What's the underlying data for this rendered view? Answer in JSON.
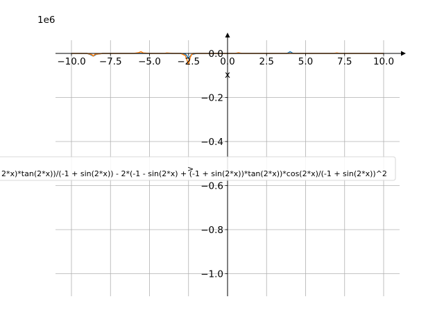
{
  "chart_data": {
    "type": "line",
    "title": "",
    "xlabel": "x",
    "ylabel": "",
    "y_offset_label": "1e6",
    "xlim": [
      -11.0,
      11.5
    ],
    "ylim": [
      -1.1,
      0.1
    ],
    "grid": true,
    "legend_position": "center-left",
    "x_ticks": [
      -10.0,
      -7.5,
      -5.0,
      -2.5,
      0.0,
      2.5,
      5.0,
      7.5,
      10.0
    ],
    "x_tick_labels": [
      "−10.0",
      "−7.5",
      "−5.0",
      "−2.5",
      "0.0",
      "2.5",
      "5.0",
      "7.5",
      "10.0"
    ],
    "y_ticks": [
      0.0,
      -0.2,
      -0.4,
      -0.6,
      -0.8,
      -1.0
    ],
    "y_tick_labels": [
      "0.0",
      "−0.2",
      "−0.4",
      "−0.6",
      "−0.8",
      "−1.0"
    ],
    "legend_entries": [
      "2*x)*tan(2*x))/(-1 + sin(2*x)) - 2*(-1 - sin(2*x) + (-1 + sin(2*x))*tan(2*x))*cos(2*x)/(-1 + sin(2*x))^2",
      ">"
    ],
    "series": [
      {
        "color": "#1f77b4",
        "x": [
          -10,
          -9.5,
          -9,
          -8.8,
          -8.6,
          -8.4,
          -8,
          -7,
          -6,
          -5.5,
          -5,
          -4,
          -3,
          -2.7,
          -2.5,
          -2.3,
          -2,
          -1,
          0,
          1,
          2,
          3,
          3.8,
          3.9,
          4.0,
          4.2,
          5,
          6,
          7,
          8,
          9,
          10
        ],
        "y": [
          0,
          0,
          0,
          -0.005,
          -0.012,
          -0.004,
          0,
          0,
          0,
          0,
          0,
          0,
          0,
          -0.003,
          -0.02,
          -0.005,
          0,
          0,
          0,
          0,
          0,
          0,
          0,
          0.003,
          0.008,
          0,
          0,
          0,
          0,
          0,
          0,
          0
        ]
      },
      {
        "color": "#ff7f0e",
        "x": [
          -10,
          -9,
          -8.7,
          -8.6,
          -8.5,
          -8,
          -7,
          -6,
          -5.7,
          -5.55,
          -5.4,
          -5,
          -4.5,
          -4,
          -3.9,
          -3.5,
          -3,
          -2.7,
          -2.6,
          -2.5,
          -2.4,
          -2.3,
          -2.2,
          -2,
          -1,
          0,
          0.5,
          0.7,
          0.9,
          1.5,
          2,
          3,
          4,
          5,
          6,
          6.8,
          7,
          7.2,
          8,
          9,
          10
        ],
        "y": [
          0,
          0,
          -0.005,
          -0.012,
          -0.004,
          0,
          0,
          0,
          0.003,
          0.008,
          0.002,
          0,
          0,
          0,
          0.002,
          0,
          0,
          -0.01,
          -0.03,
          -0.05,
          -0.02,
          -0.005,
          0,
          0,
          0,
          0,
          0,
          0.003,
          0,
          0,
          0,
          0,
          0,
          0,
          0,
          0,
          0.002,
          0,
          0,
          0,
          0
        ]
      }
    ]
  }
}
